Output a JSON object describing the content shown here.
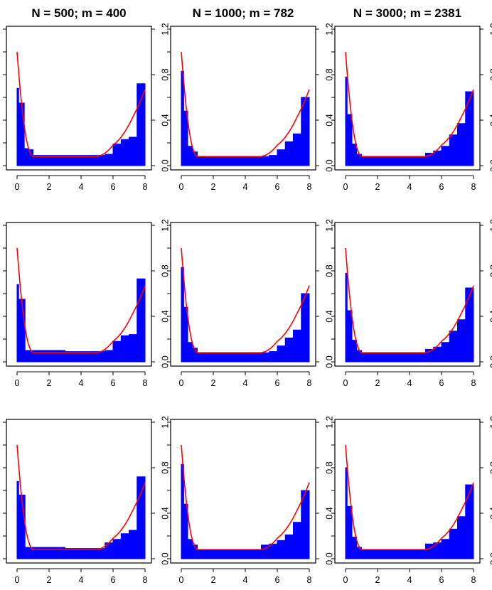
{
  "figure": {
    "background": "#ffffff",
    "fill_color": "#0000ff",
    "curve_color": "#ff0000"
  },
  "column_titles": [
    "N = 500; m = 400",
    "N = 1000; m = 782",
    "N = 3000; m = 2381"
  ],
  "x_ticks": [
    "0",
    "2",
    "4",
    "6",
    "8"
  ],
  "y_ticks": [
    "0.0",
    "0.4",
    "0.8",
    "1.2"
  ],
  "chart_data": [
    {
      "type": "area",
      "panel": "row1-col1",
      "title": "N = 500; m = 400",
      "xlim": [
        0,
        8
      ],
      "ylim": [
        0,
        1.25
      ],
      "step": {
        "x": [
          0,
          0.1,
          0.45,
          0.7,
          1,
          3,
          5,
          5.5,
          6,
          6.5,
          7,
          7.5,
          8
        ],
        "y": [
          0.68,
          0.55,
          0.15,
          0.14,
          0.09,
          0.09,
          0.09,
          0.1,
          0.19,
          0.23,
          0.25,
          0.72,
          0.72
        ]
      },
      "curve": {
        "x": [
          0,
          0.1,
          0.2,
          0.3,
          0.4,
          0.5,
          0.6,
          0.7,
          0.8,
          0.9,
          1,
          5,
          5.25,
          5.5,
          5.75,
          6,
          6.25,
          6.5,
          6.75,
          7,
          7.25,
          7.5,
          7.75,
          8
        ],
        "y": [
          1.0,
          0.82,
          0.66,
          0.52,
          0.4,
          0.3,
          0.22,
          0.16,
          0.12,
          0.09,
          0.08,
          0.08,
          0.09,
          0.11,
          0.14,
          0.18,
          0.21,
          0.25,
          0.3,
          0.36,
          0.43,
          0.5,
          0.58,
          0.67
        ]
      }
    },
    {
      "type": "area",
      "panel": "row1-col2",
      "title": "N = 1000; m = 782",
      "xlim": [
        0,
        8
      ],
      "ylim": [
        0,
        1.25
      ],
      "step": {
        "x": [
          0,
          0.15,
          0.4,
          0.7,
          1,
          3,
          5,
          5.5,
          6,
          6.5,
          7,
          7.5,
          8
        ],
        "y": [
          0.83,
          0.48,
          0.17,
          0.12,
          0.08,
          0.08,
          0.08,
          0.09,
          0.14,
          0.21,
          0.28,
          0.6,
          0.6
        ]
      },
      "curve": {
        "x": [
          0,
          0.1,
          0.2,
          0.3,
          0.4,
          0.5,
          0.6,
          0.7,
          0.8,
          0.9,
          1,
          5,
          5.25,
          5.5,
          5.75,
          6,
          6.25,
          6.5,
          6.75,
          7,
          7.25,
          7.5,
          7.75,
          8
        ],
        "y": [
          1.0,
          0.82,
          0.66,
          0.52,
          0.4,
          0.3,
          0.22,
          0.16,
          0.12,
          0.09,
          0.08,
          0.08,
          0.09,
          0.11,
          0.14,
          0.18,
          0.21,
          0.25,
          0.3,
          0.36,
          0.43,
          0.5,
          0.58,
          0.67
        ]
      }
    },
    {
      "type": "area",
      "panel": "row1-col3",
      "title": "N = 3000; m = 2381",
      "xlim": [
        0,
        8
      ],
      "ylim": [
        0,
        1.25
      ],
      "step": {
        "x": [
          0,
          0.1,
          0.4,
          0.7,
          1,
          3,
          5,
          5.5,
          6,
          6.5,
          7,
          7.5,
          8
        ],
        "y": [
          0.78,
          0.45,
          0.19,
          0.1,
          0.08,
          0.08,
          0.11,
          0.13,
          0.17,
          0.27,
          0.37,
          0.65,
          0.65
        ]
      },
      "curve": {
        "x": [
          0,
          0.1,
          0.2,
          0.3,
          0.4,
          0.5,
          0.6,
          0.7,
          0.8,
          0.9,
          1,
          5,
          5.25,
          5.5,
          5.75,
          6,
          6.25,
          6.5,
          6.75,
          7,
          7.25,
          7.5,
          7.75,
          8
        ],
        "y": [
          1.0,
          0.82,
          0.66,
          0.52,
          0.4,
          0.3,
          0.22,
          0.16,
          0.12,
          0.09,
          0.08,
          0.08,
          0.09,
          0.11,
          0.14,
          0.18,
          0.21,
          0.25,
          0.3,
          0.36,
          0.43,
          0.5,
          0.58,
          0.67
        ]
      }
    },
    {
      "type": "area",
      "panel": "row2-col1",
      "xlim": [
        0,
        8
      ],
      "ylim": [
        0,
        1.25
      ],
      "step": {
        "x": [
          0,
          0.1,
          0.5,
          0.7,
          1,
          3,
          5,
          5.5,
          6,
          6.5,
          7,
          7.5,
          8
        ],
        "y": [
          0.68,
          0.55,
          0.1,
          0.1,
          0.1,
          0.09,
          0.09,
          0.1,
          0.18,
          0.23,
          0.24,
          0.73,
          0.73
        ]
      },
      "curve": {
        "x": [
          0,
          0.1,
          0.2,
          0.3,
          0.4,
          0.5,
          0.6,
          0.7,
          0.8,
          0.9,
          1,
          5,
          5.25,
          5.5,
          5.75,
          6,
          6.25,
          6.5,
          6.75,
          7,
          7.25,
          7.5,
          7.75,
          8
        ],
        "y": [
          1.0,
          0.82,
          0.66,
          0.52,
          0.4,
          0.3,
          0.22,
          0.16,
          0.12,
          0.09,
          0.08,
          0.08,
          0.09,
          0.11,
          0.14,
          0.18,
          0.21,
          0.25,
          0.3,
          0.36,
          0.43,
          0.5,
          0.58,
          0.67
        ]
      }
    },
    {
      "type": "area",
      "panel": "row2-col2",
      "xlim": [
        0,
        8
      ],
      "ylim": [
        0,
        1.25
      ],
      "step": {
        "x": [
          0,
          0.15,
          0.4,
          0.7,
          1,
          3,
          5,
          5.5,
          6,
          6.5,
          7,
          7.5,
          8
        ],
        "y": [
          0.83,
          0.48,
          0.17,
          0.12,
          0.08,
          0.08,
          0.08,
          0.09,
          0.14,
          0.21,
          0.28,
          0.6,
          0.6
        ]
      },
      "curve": {
        "x": [
          0,
          0.1,
          0.2,
          0.3,
          0.4,
          0.5,
          0.6,
          0.7,
          0.8,
          0.9,
          1,
          5,
          5.25,
          5.5,
          5.75,
          6,
          6.25,
          6.5,
          6.75,
          7,
          7.25,
          7.5,
          7.75,
          8
        ],
        "y": [
          1.0,
          0.82,
          0.66,
          0.52,
          0.4,
          0.3,
          0.22,
          0.16,
          0.12,
          0.09,
          0.08,
          0.08,
          0.09,
          0.11,
          0.14,
          0.18,
          0.21,
          0.25,
          0.3,
          0.36,
          0.43,
          0.5,
          0.58,
          0.67
        ]
      }
    },
    {
      "type": "area",
      "panel": "row2-col3",
      "xlim": [
        0,
        8
      ],
      "ylim": [
        0,
        1.25
      ],
      "step": {
        "x": [
          0,
          0.1,
          0.4,
          0.7,
          1,
          3,
          5,
          5.5,
          6,
          6.5,
          7,
          7.5,
          8
        ],
        "y": [
          0.78,
          0.45,
          0.19,
          0.1,
          0.08,
          0.08,
          0.11,
          0.13,
          0.17,
          0.27,
          0.37,
          0.65,
          0.65
        ]
      },
      "curve": {
        "x": [
          0,
          0.1,
          0.2,
          0.3,
          0.4,
          0.5,
          0.6,
          0.7,
          0.8,
          0.9,
          1,
          5,
          5.25,
          5.5,
          5.75,
          6,
          6.25,
          6.5,
          6.75,
          7,
          7.25,
          7.5,
          7.75,
          8
        ],
        "y": [
          1.0,
          0.82,
          0.66,
          0.52,
          0.4,
          0.3,
          0.22,
          0.16,
          0.12,
          0.09,
          0.08,
          0.08,
          0.09,
          0.11,
          0.14,
          0.18,
          0.21,
          0.25,
          0.3,
          0.36,
          0.43,
          0.5,
          0.58,
          0.67
        ]
      }
    },
    {
      "type": "area",
      "panel": "row3-col1",
      "xlim": [
        0,
        8
      ],
      "ylim": [
        0,
        1.25
      ],
      "step": {
        "x": [
          0,
          0.1,
          0.5,
          0.7,
          1,
          3,
          5,
          5.5,
          6,
          6.5,
          7,
          7.5,
          8
        ],
        "y": [
          0.68,
          0.56,
          0.1,
          0.1,
          0.1,
          0.09,
          0.09,
          0.14,
          0.17,
          0.22,
          0.25,
          0.72,
          0.72
        ]
      },
      "curve": {
        "x": [
          0,
          0.1,
          0.2,
          0.3,
          0.4,
          0.5,
          0.6,
          0.7,
          0.8,
          0.9,
          1,
          5,
          5.25,
          5.5,
          5.75,
          6,
          6.25,
          6.5,
          6.75,
          7,
          7.25,
          7.5,
          7.75,
          8
        ],
        "y": [
          1.0,
          0.82,
          0.66,
          0.52,
          0.4,
          0.3,
          0.22,
          0.16,
          0.12,
          0.09,
          0.08,
          0.08,
          0.09,
          0.11,
          0.14,
          0.18,
          0.21,
          0.25,
          0.3,
          0.36,
          0.43,
          0.5,
          0.58,
          0.67
        ]
      }
    },
    {
      "type": "area",
      "panel": "row3-col2",
      "xlim": [
        0,
        8
      ],
      "ylim": [
        0,
        1.25
      ],
      "step": {
        "x": [
          0,
          0.15,
          0.4,
          0.7,
          1,
          3,
          5,
          5.5,
          6,
          6.5,
          7,
          7.5,
          8
        ],
        "y": [
          0.83,
          0.48,
          0.17,
          0.12,
          0.08,
          0.08,
          0.12,
          0.13,
          0.16,
          0.21,
          0.32,
          0.6,
          0.6
        ]
      },
      "curve": {
        "x": [
          0,
          0.1,
          0.2,
          0.3,
          0.4,
          0.5,
          0.6,
          0.7,
          0.8,
          0.9,
          1,
          5,
          5.25,
          5.5,
          5.75,
          6,
          6.25,
          6.5,
          6.75,
          7,
          7.25,
          7.5,
          7.75,
          8
        ],
        "y": [
          1.0,
          0.82,
          0.66,
          0.52,
          0.4,
          0.3,
          0.22,
          0.16,
          0.12,
          0.09,
          0.08,
          0.08,
          0.09,
          0.11,
          0.14,
          0.18,
          0.21,
          0.25,
          0.3,
          0.36,
          0.43,
          0.5,
          0.58,
          0.67
        ]
      }
    },
    {
      "type": "area",
      "panel": "row3-col3",
      "xlim": [
        0,
        8
      ],
      "ylim": [
        0,
        1.25
      ],
      "step": {
        "x": [
          0,
          0.1,
          0.4,
          0.7,
          1,
          3,
          5,
          5.5,
          6,
          6.5,
          7,
          7.5,
          8
        ],
        "y": [
          0.8,
          0.46,
          0.19,
          0.1,
          0.08,
          0.08,
          0.13,
          0.14,
          0.17,
          0.26,
          0.37,
          0.65,
          0.65
        ]
      },
      "curve": {
        "x": [
          0,
          0.1,
          0.2,
          0.3,
          0.4,
          0.5,
          0.6,
          0.7,
          0.8,
          0.9,
          1,
          5,
          5.25,
          5.5,
          5.75,
          6,
          6.25,
          6.5,
          6.75,
          7,
          7.25,
          7.5,
          7.75,
          8
        ],
        "y": [
          1.0,
          0.82,
          0.66,
          0.52,
          0.4,
          0.3,
          0.22,
          0.16,
          0.12,
          0.09,
          0.08,
          0.08,
          0.09,
          0.11,
          0.14,
          0.18,
          0.21,
          0.25,
          0.3,
          0.36,
          0.43,
          0.5,
          0.58,
          0.67
        ]
      }
    }
  ]
}
